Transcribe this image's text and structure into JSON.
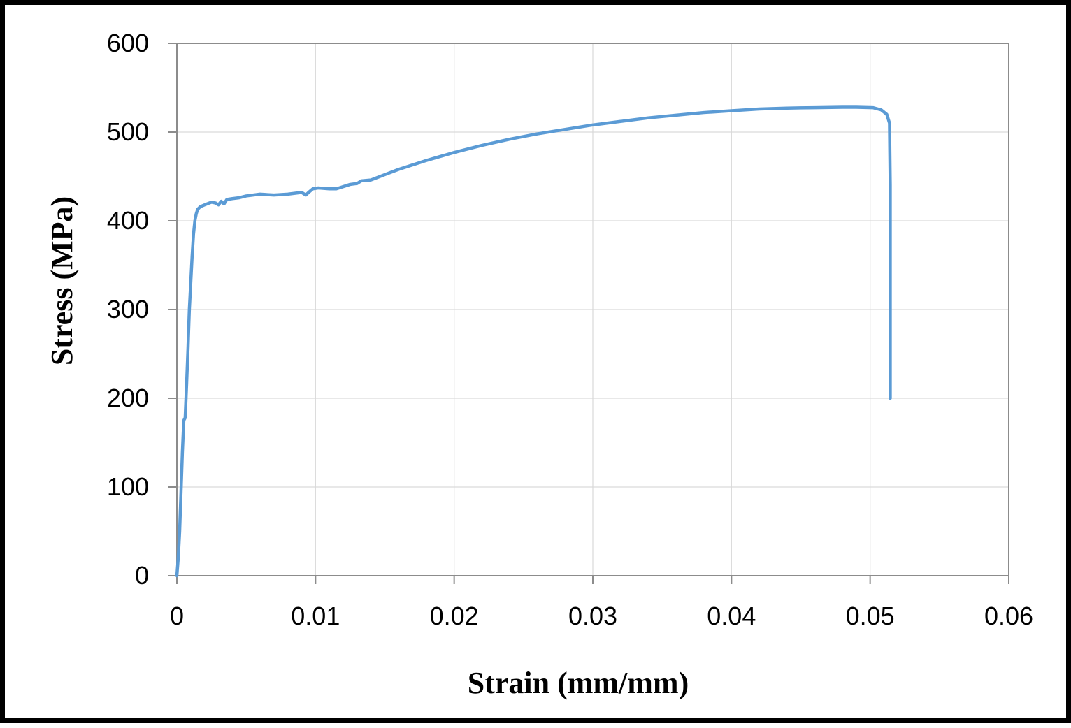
{
  "chart_data": {
    "type": "line",
    "title": "",
    "xlabel": "Strain (mm/mm)",
    "ylabel": "Stress (MPa)",
    "xlim": [
      0,
      0.06
    ],
    "ylim": [
      0,
      600
    ],
    "x_ticks": [
      "0",
      "0.01",
      "0.02",
      "0.03",
      "0.04",
      "0.05",
      "0.06"
    ],
    "y_ticks": [
      "0",
      "100",
      "200",
      "300",
      "400",
      "500",
      "600"
    ],
    "grid": true,
    "legend": "none",
    "series": [
      {
        "color": "#5b9bd5",
        "points": [
          [
            0,
            0
          ],
          [
            0.0001,
            20
          ],
          [
            0.0002,
            50
          ],
          [
            0.0003,
            95
          ],
          [
            0.0004,
            140
          ],
          [
            0.0005,
            175
          ],
          [
            0.0006,
            178
          ],
          [
            0.0007,
            215
          ],
          [
            0.0008,
            255
          ],
          [
            0.0009,
            300
          ],
          [
            0.001,
            330
          ],
          [
            0.0011,
            360
          ],
          [
            0.0012,
            385
          ],
          [
            0.0013,
            400
          ],
          [
            0.0014,
            408
          ],
          [
            0.0015,
            413
          ],
          [
            0.0017,
            416
          ],
          [
            0.002,
            418
          ],
          [
            0.0025,
            421
          ],
          [
            0.0028,
            420
          ],
          [
            0.003,
            418
          ],
          [
            0.0032,
            422
          ],
          [
            0.0034,
            419
          ],
          [
            0.0036,
            424
          ],
          [
            0.004,
            425
          ],
          [
            0.0045,
            426
          ],
          [
            0.005,
            428
          ],
          [
            0.006,
            430
          ],
          [
            0.007,
            429
          ],
          [
            0.008,
            430
          ],
          [
            0.0085,
            431
          ],
          [
            0.009,
            432
          ],
          [
            0.0093,
            429
          ],
          [
            0.0095,
            432
          ],
          [
            0.0098,
            436
          ],
          [
            0.0102,
            437
          ],
          [
            0.011,
            436
          ],
          [
            0.0115,
            436
          ],
          [
            0.0125,
            441
          ],
          [
            0.013,
            442
          ],
          [
            0.0133,
            445
          ],
          [
            0.014,
            446
          ],
          [
            0.015,
            452
          ],
          [
            0.016,
            458
          ],
          [
            0.018,
            468
          ],
          [
            0.02,
            477
          ],
          [
            0.022,
            485
          ],
          [
            0.024,
            492
          ],
          [
            0.026,
            498
          ],
          [
            0.028,
            503
          ],
          [
            0.03,
            508
          ],
          [
            0.032,
            512
          ],
          [
            0.034,
            516
          ],
          [
            0.036,
            519
          ],
          [
            0.038,
            522
          ],
          [
            0.04,
            524
          ],
          [
            0.042,
            526
          ],
          [
            0.044,
            527
          ],
          [
            0.046,
            527.5
          ],
          [
            0.048,
            528
          ],
          [
            0.049,
            528
          ],
          [
            0.0502,
            527.5
          ],
          [
            0.0508,
            525
          ],
          [
            0.0512,
            520
          ],
          [
            0.0514,
            510
          ],
          [
            0.05142,
            480
          ],
          [
            0.05145,
            440
          ],
          [
            0.05145,
            380
          ],
          [
            0.05145,
            320
          ],
          [
            0.05145,
            260
          ],
          [
            0.05145,
            200
          ]
        ]
      }
    ]
  }
}
